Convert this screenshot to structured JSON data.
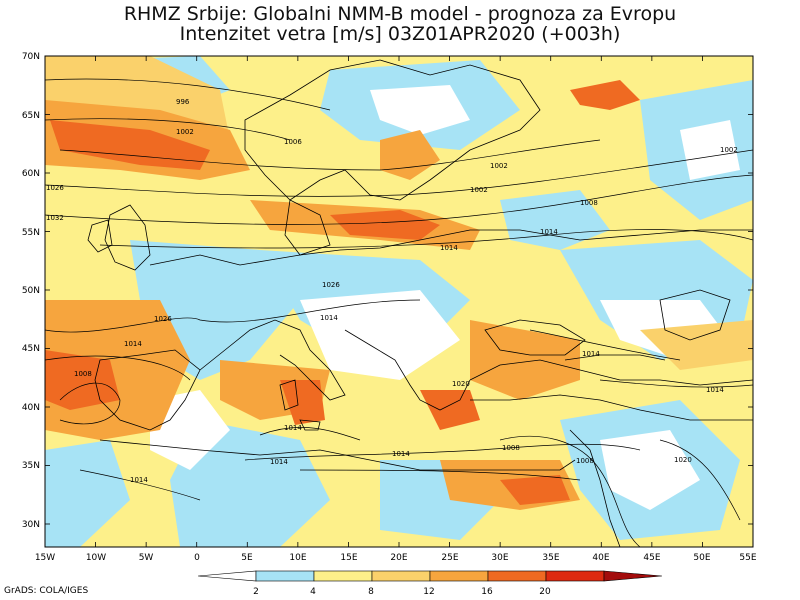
{
  "title": {
    "line1": "RHMZ Srbije: Globalni NMM-B model - prognoza za Evropu",
    "line2": "Intenzitet vetra [m/s] 03Z01APR2020 (+003h)"
  },
  "axes": {
    "lat_labels": [
      "70N",
      "65N",
      "60N",
      "55N",
      "50N",
      "45N",
      "40N",
      "35N",
      "30N"
    ],
    "lon_labels": [
      "15W",
      "10W",
      "5W",
      "0",
      "5E",
      "10E",
      "15E",
      "20E",
      "25E",
      "30E",
      "35E",
      "40E",
      "45E",
      "50E",
      "55E"
    ]
  },
  "isobars": [
    "996",
    "1002",
    "1006",
    "1002",
    "1002",
    "1008",
    "1014",
    "1026",
    "1026",
    "1014",
    "1008",
    "1002",
    "1014",
    "1014",
    "1020",
    "1014",
    "1014",
    "1014",
    "1014",
    "1008",
    "1008",
    "1020",
    "1014",
    "1014",
    "1026",
    "1032"
  ],
  "colorbar": {
    "ticks": [
      "2",
      "4",
      "8",
      "12",
      "16",
      "20"
    ],
    "colors": [
      "#ffffff",
      "#a7e3f5",
      "#fdf08a",
      "#fad16b",
      "#f6a53e",
      "#ef6a22",
      "#dd2a10",
      "#a30c0c"
    ]
  },
  "credit": "GrADS: COLA/IGES"
}
